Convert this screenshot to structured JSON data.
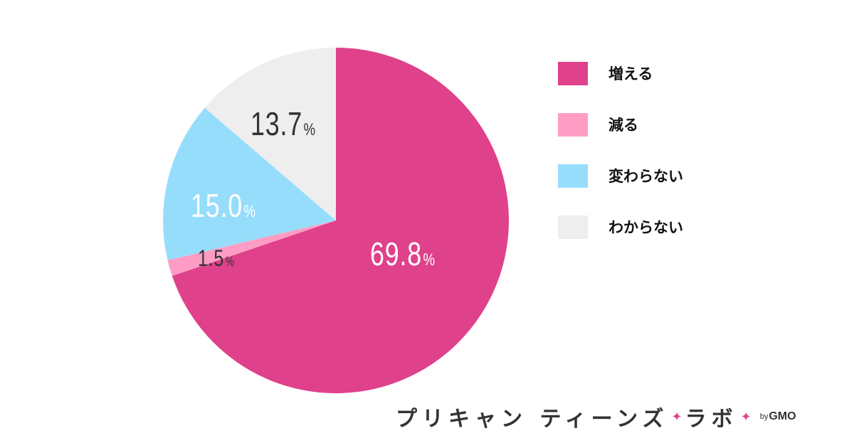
{
  "chart_data": {
    "type": "pie",
    "series": [
      {
        "slices": [
          {
            "label": "増える",
            "value": 69.8,
            "color": "#df418b"
          },
          {
            "label": "減る",
            "value": 1.5,
            "color": "#fe9dc3"
          },
          {
            "label": "変わらない",
            "value": 15.0,
            "color": "#96ddfc"
          },
          {
            "label": "わからない",
            "value": 13.7,
            "color": "#eeeeee"
          }
        ]
      }
    ],
    "value_labels": [
      "69.8",
      "1.5",
      "15.0",
      "13.7"
    ],
    "unit": "%",
    "start_angle": "12 o'clock",
    "direction": "clockwise",
    "legend_position": "right"
  },
  "legend": {
    "items": [
      {
        "label": "増える",
        "color": "#df418b"
      },
      {
        "label": "減る",
        "color": "#fe9dc3"
      },
      {
        "label": "変わらない",
        "color": "#96ddfc"
      },
      {
        "label": "わからない",
        "color": "#eeeeee"
      }
    ]
  },
  "branding": {
    "name_part1": "プリキャン ティーンズ",
    "name_part2": "ラボ",
    "by": "by",
    "company": "GMO",
    "star_color": "#e0438c"
  }
}
